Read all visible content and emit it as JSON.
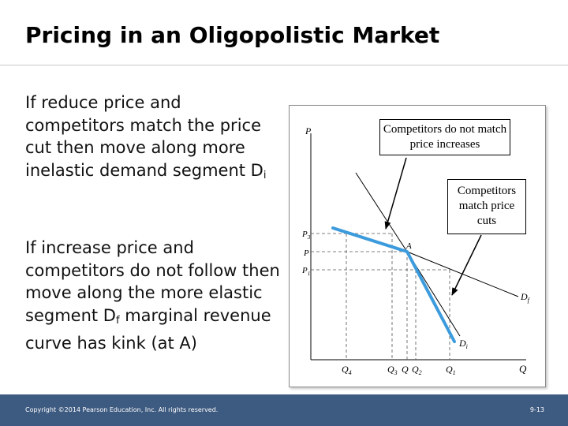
{
  "slide": {
    "title": "Pricing in an Oligopolistic Market",
    "para1": {
      "text": "If reduce price and competitors match the price cut then move along more inelastic demand segment D",
      "subscript": "i"
    },
    "para2": {
      "text1": "If increase price and competitors do not follow then move along the more elastic segment D",
      "subscript": "f",
      "text2": " marginal revenue curve has kink (at A)"
    }
  },
  "diagram": {
    "axis_y_label": "P",
    "axis_x_label": "Q",
    "price_labels": [
      {
        "main": "P",
        "sub": "3"
      },
      {
        "main": "P",
        "sub": ""
      },
      {
        "main": "P",
        "sub": "1"
      }
    ],
    "quantity_labels": [
      {
        "main": "Q",
        "sub": "4"
      },
      {
        "main": "Q",
        "sub": "3"
      },
      {
        "main": "Q",
        "sub": ""
      },
      {
        "main": "Q",
        "sub": "2"
      },
      {
        "main": "Q",
        "sub": "1"
      }
    ],
    "point_label": "A",
    "curve_df": {
      "main": "D",
      "sub": "f"
    },
    "curve_di": {
      "main": "D",
      "sub": "i"
    },
    "callout_1": "Competitors do not match price increases",
    "callout_2": "Competitors match price cuts",
    "highlight_color": "#3c9bdc"
  },
  "footer": {
    "copyright": "Copyright ©2014 Pearson Education, Inc. All rights reserved.",
    "page": "9-13",
    "color": "#3d5a80"
  }
}
